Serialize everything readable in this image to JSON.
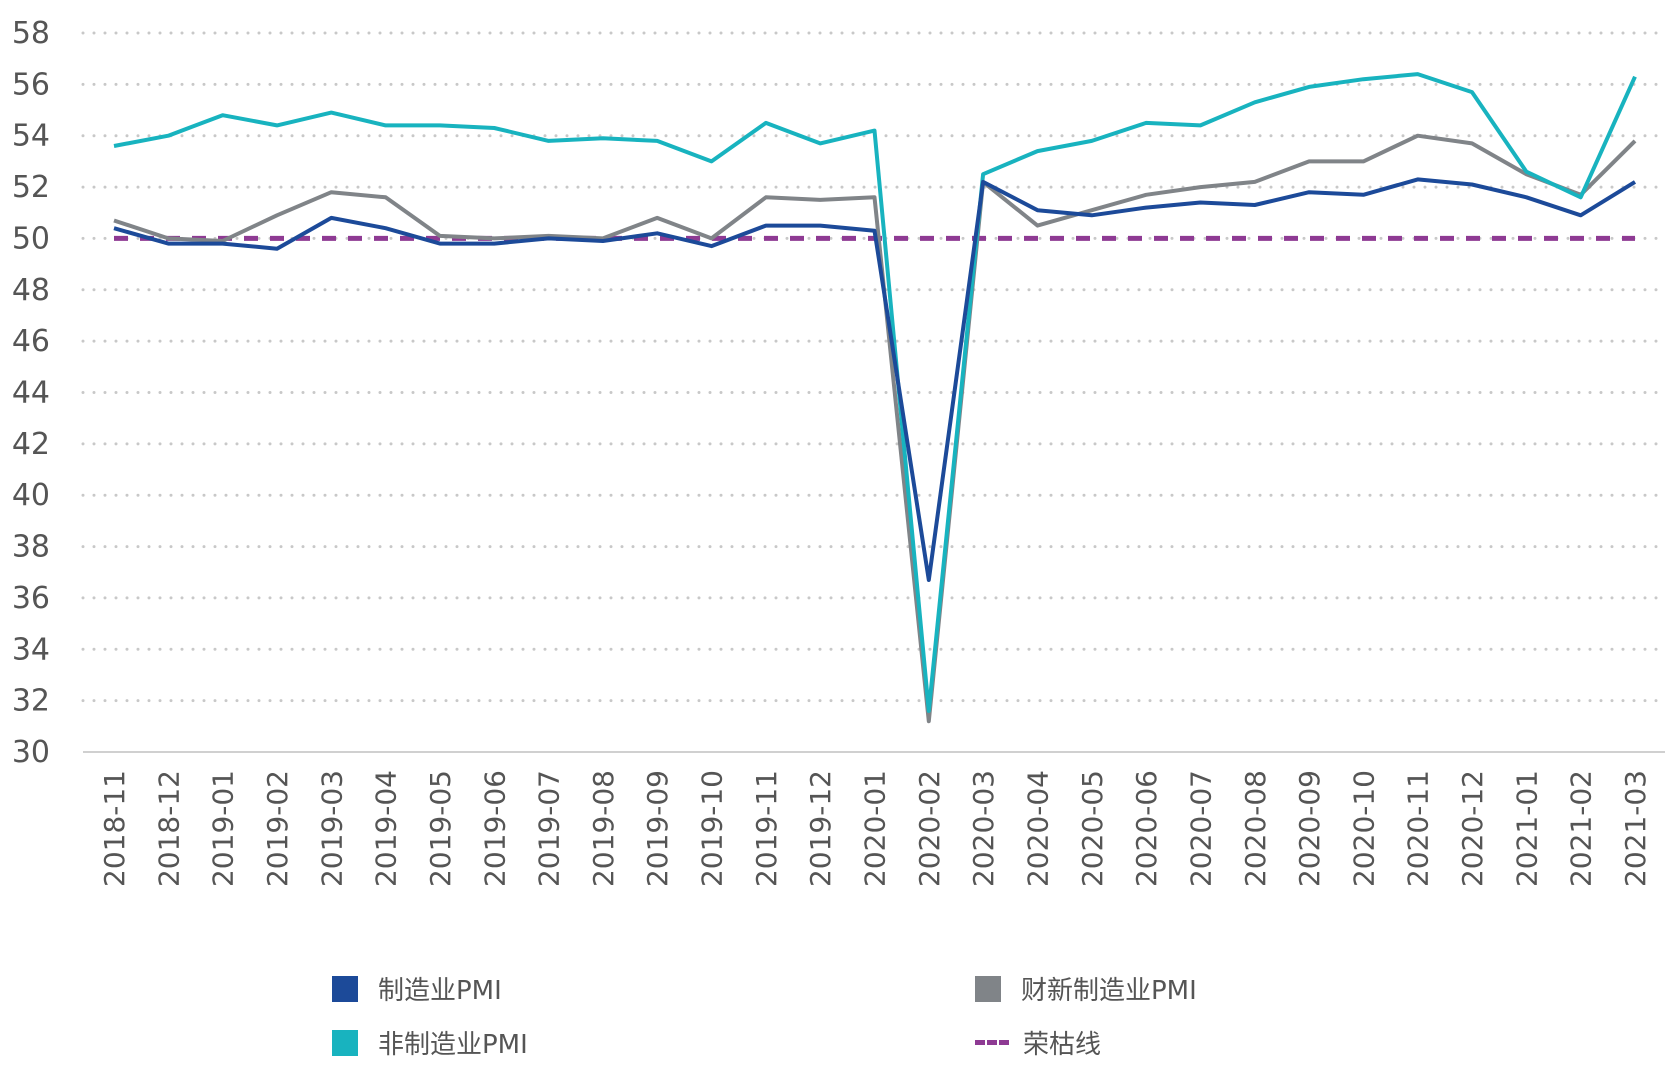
{
  "chart_data": {
    "type": "line",
    "categories": [
      "2018-11",
      "2018-12",
      "2019-01",
      "2019-02",
      "2019-03",
      "2019-04",
      "2019-05",
      "2019-06",
      "2019-07",
      "2019-08",
      "2019-09",
      "2019-10",
      "2019-11",
      "2019-12",
      "2020-01",
      "2020-02",
      "2020-03",
      "2020-04",
      "2020-05",
      "2020-06",
      "2020-07",
      "2020-08",
      "2020-09",
      "2020-10",
      "2020-11",
      "2020-12",
      "2021-01",
      "2021-02",
      "2021-03"
    ],
    "ylim": [
      30,
      58
    ],
    "yticks": [
      "30",
      "32",
      "34",
      "36",
      "38",
      "40",
      "42",
      "44",
      "46",
      "48",
      "50",
      "52",
      "54",
      "56",
      "58"
    ],
    "grid": "horizontal-dotted",
    "legend_position": "bottom",
    "series": [
      {
        "name": "制造业PMI",
        "color": "#1c4a99",
        "values": [
          50.4,
          49.8,
          49.8,
          49.6,
          50.8,
          50.4,
          49.8,
          49.8,
          50.0,
          49.9,
          50.2,
          49.7,
          50.5,
          50.5,
          50.3,
          36.7,
          52.2,
          51.1,
          50.9,
          51.2,
          51.4,
          51.3,
          51.8,
          51.7,
          52.3,
          52.1,
          51.6,
          50.9,
          52.2
        ]
      },
      {
        "name": "非制造业PMI",
        "color": "#18b3bf",
        "values": [
          53.6,
          54.0,
          54.8,
          54.4,
          54.9,
          54.4,
          54.4,
          54.3,
          53.8,
          53.9,
          53.8,
          53.0,
          54.5,
          53.7,
          54.2,
          31.6,
          52.5,
          53.4,
          53.8,
          54.5,
          54.4,
          55.3,
          55.9,
          56.2,
          56.4,
          55.7,
          52.6,
          51.6,
          56.3
        ]
      },
      {
        "name": "财新制造业PMI",
        "color": "#808488",
        "values": [
          50.7,
          50.0,
          49.9,
          50.9,
          51.8,
          51.6,
          50.1,
          50.0,
          50.1,
          50.0,
          50.8,
          50.0,
          51.6,
          51.5,
          51.6,
          31.2,
          52.2,
          50.5,
          51.1,
          51.7,
          52.0,
          52.2,
          53.0,
          53.0,
          54.0,
          53.7,
          52.5,
          51.7,
          53.8
        ]
      },
      {
        "name": "荣枯线",
        "color": "#8e3a93",
        "style": "dashed",
        "values": [
          50,
          50,
          50,
          50,
          50,
          50,
          50,
          50,
          50,
          50,
          50,
          50,
          50,
          50,
          50,
          50,
          50,
          50,
          50,
          50,
          50,
          50,
          50,
          50,
          50,
          50,
          50,
          50,
          50
        ]
      }
    ]
  }
}
